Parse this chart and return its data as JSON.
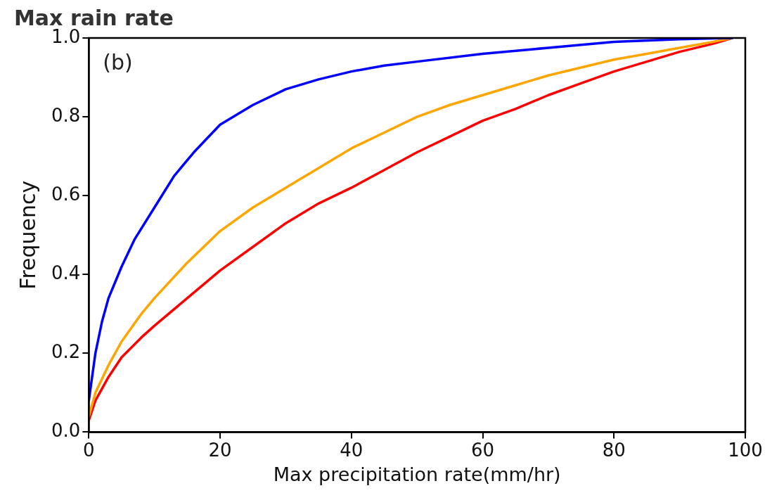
{
  "chart_data": {
    "type": "line",
    "title": "Max rain rate",
    "xlabel": "Max precipitation rate(mm/hr)",
    "ylabel": "Frequency",
    "annotations": [
      "(b)"
    ],
    "xlim": [
      0,
      100
    ],
    "xticks": [
      0,
      20,
      40,
      60,
      80,
      100
    ],
    "ylim": [
      0.0,
      1.0
    ],
    "yticks": [
      {
        "value": 0,
        "label": "0.0"
      },
      {
        "value": 0.2,
        "label": "0.2"
      },
      {
        "value": 0.4,
        "label": "0.4"
      },
      {
        "value": 0.6,
        "label": "0.6"
      },
      {
        "value": 0.8,
        "label": "0.8"
      },
      {
        "value": 1,
        "label": "1.0"
      }
    ],
    "grid": false,
    "legend": false,
    "marker": "none",
    "line_style": "solid",
    "series": [
      {
        "color": "#0000ff",
        "x": [
          0,
          1,
          2,
          3,
          5,
          7,
          10,
          13,
          16,
          20,
          25,
          30,
          35,
          40,
          45,
          50,
          60,
          70,
          80,
          90,
          98
        ],
        "values": [
          0.08,
          0.2,
          0.28,
          0.34,
          0.42,
          0.49,
          0.57,
          0.65,
          0.71,
          0.78,
          0.83,
          0.87,
          0.895,
          0.915,
          0.93,
          0.94,
          0.96,
          0.975,
          0.99,
          0.997,
          1.0
        ]
      },
      {
        "color": "#ffa500",
        "x": [
          0,
          1,
          3,
          5,
          8,
          10,
          15,
          20,
          25,
          30,
          35,
          40,
          45,
          50,
          55,
          60,
          65,
          70,
          75,
          80,
          85,
          90,
          95,
          98
        ],
        "values": [
          0.04,
          0.1,
          0.17,
          0.23,
          0.3,
          0.34,
          0.43,
          0.51,
          0.57,
          0.62,
          0.67,
          0.72,
          0.76,
          0.8,
          0.83,
          0.855,
          0.88,
          0.905,
          0.925,
          0.945,
          0.96,
          0.975,
          0.99,
          1.0
        ]
      },
      {
        "color": "#ff0000",
        "x": [
          0,
          1,
          3,
          5,
          8,
          10,
          15,
          20,
          25,
          30,
          35,
          40,
          45,
          50,
          55,
          60,
          65,
          70,
          75,
          80,
          85,
          90,
          95,
          98
        ],
        "values": [
          0.03,
          0.08,
          0.14,
          0.19,
          0.24,
          0.27,
          0.34,
          0.41,
          0.47,
          0.53,
          0.58,
          0.62,
          0.665,
          0.71,
          0.75,
          0.79,
          0.82,
          0.855,
          0.885,
          0.915,
          0.94,
          0.965,
          0.985,
          1.0
        ]
      }
    ]
  }
}
